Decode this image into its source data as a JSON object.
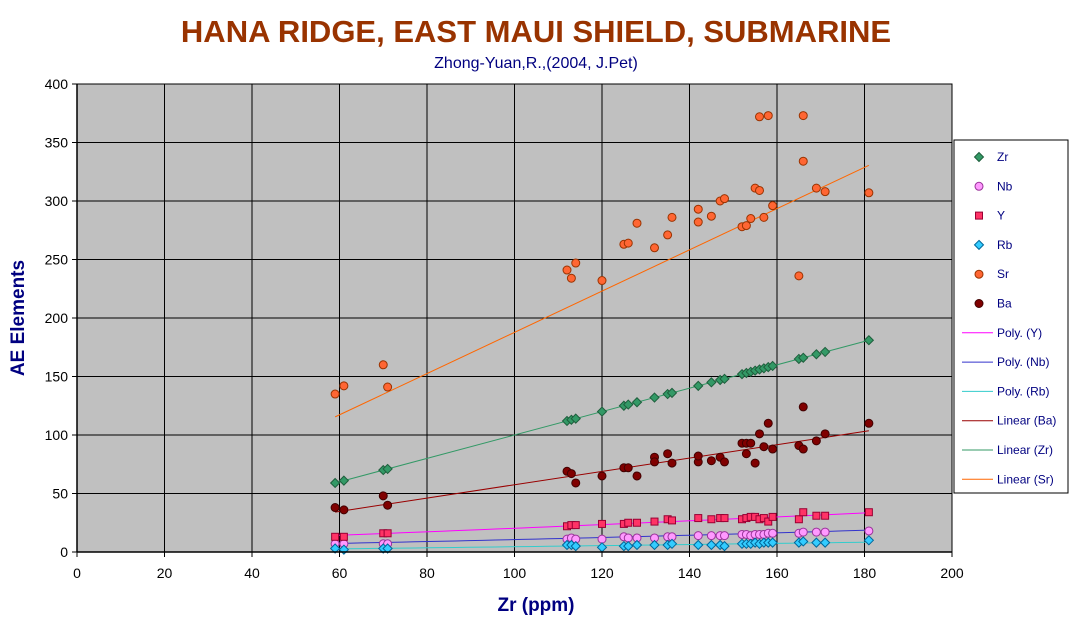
{
  "chart_data": {
    "type": "scatter",
    "title": "HANA RIDGE, EAST MAUI SHIELD, SUBMARINE",
    "subtitle": "Zhong-Yuan,R.,(2004, J.Pet)",
    "xlabel": "Zr (ppm)",
    "ylabel": "AE Elements",
    "xlim": [
      0,
      200
    ],
    "ylim": [
      0,
      400
    ],
    "xticks": [
      "0",
      "20",
      "40",
      "60",
      "80",
      "100",
      "120",
      "140",
      "160",
      "180",
      "200"
    ],
    "yticks": [
      "0",
      "50",
      "100",
      "150",
      "200",
      "250",
      "300",
      "350",
      "400"
    ],
    "grid": true,
    "legend_position": "right",
    "series": [
      {
        "name": "Zr",
        "marker": "diamond",
        "color": "#339966",
        "edge": "#1e5e3c",
        "x": [
          59,
          61,
          70,
          71,
          112,
          113,
          114,
          120,
          125,
          126,
          128,
          132,
          135,
          136,
          142,
          145,
          147,
          148,
          152,
          153,
          154,
          155,
          156,
          157,
          158,
          159,
          165,
          166,
          169,
          171,
          181
        ],
        "y": [
          59,
          61,
          70,
          71,
          112,
          113,
          114,
          120,
          125,
          126,
          128,
          132,
          135,
          136,
          142,
          145,
          147,
          148,
          152,
          153,
          154,
          155,
          156,
          157,
          158,
          159,
          165,
          166,
          169,
          171,
          181
        ]
      },
      {
        "name": "Nb",
        "marker": "circle",
        "color": "#ff99ff",
        "edge": "#993399",
        "x": [
          59,
          61,
          70,
          71,
          112,
          113,
          114,
          120,
          125,
          126,
          128,
          132,
          135,
          136,
          142,
          145,
          147,
          148,
          152,
          153,
          154,
          155,
          156,
          157,
          158,
          159,
          165,
          166,
          169,
          171,
          181
        ],
        "y": [
          7,
          7,
          7,
          7,
          11,
          12,
          11,
          11,
          13,
          12,
          12,
          12,
          13,
          13,
          14,
          14,
          14,
          14,
          15,
          15,
          14,
          15,
          15,
          15,
          16,
          16,
          16,
          17,
          17,
          17,
          18
        ]
      },
      {
        "name": "Y",
        "marker": "square",
        "color": "#ff3366",
        "edge": "#990033",
        "x": [
          59,
          61,
          70,
          71,
          112,
          113,
          114,
          120,
          125,
          126,
          128,
          132,
          135,
          136,
          142,
          145,
          147,
          148,
          152,
          153,
          154,
          155,
          156,
          157,
          158,
          159,
          165,
          166,
          169,
          171,
          181
        ],
        "y": [
          13,
          13,
          16,
          16,
          22,
          23,
          23,
          24,
          24,
          25,
          25,
          26,
          28,
          27,
          29,
          28,
          29,
          29,
          28,
          29,
          30,
          30,
          28,
          29,
          26,
          30,
          28,
          34,
          31,
          31,
          34
        ]
      },
      {
        "name": "Rb",
        "marker": "diamond",
        "color": "#33ccff",
        "edge": "#006699",
        "x": [
          59,
          61,
          70,
          71,
          112,
          113,
          114,
          120,
          125,
          126,
          128,
          132,
          135,
          136,
          142,
          145,
          147,
          148,
          152,
          153,
          154,
          155,
          156,
          157,
          158,
          159,
          165,
          166,
          169,
          171,
          181
        ],
        "y": [
          3,
          2,
          3,
          3,
          6,
          6,
          5,
          4,
          5,
          5,
          6,
          6,
          6,
          7,
          6,
          6,
          6,
          5,
          7,
          7,
          7,
          8,
          7,
          8,
          8,
          8,
          8,
          9,
          8,
          8,
          10
        ]
      },
      {
        "name": "Sr",
        "marker": "circle",
        "color": "#ff6633",
        "edge": "#993300",
        "x": [
          59,
          61,
          70,
          71,
          112,
          113,
          114,
          120,
          125,
          126,
          128,
          132,
          135,
          136,
          142,
          142,
          145,
          147,
          148,
          152,
          153,
          154,
          155,
          156,
          156,
          157,
          158,
          159,
          165,
          166,
          166,
          169,
          171,
          181
        ],
        "y": [
          135,
          142,
          160,
          141,
          241,
          234,
          247,
          232,
          263,
          264,
          281,
          260,
          271,
          286,
          282,
          293,
          287,
          300,
          302,
          278,
          279,
          285,
          311,
          309,
          372,
          286,
          373,
          296,
          236,
          334,
          373,
          311,
          308,
          307
        ]
      },
      {
        "name": "Ba",
        "marker": "circle",
        "color": "#800000",
        "edge": "#400000",
        "x": [
          59,
          61,
          70,
          71,
          112,
          113,
          114,
          120,
          125,
          126,
          128,
          132,
          132,
          135,
          136,
          142,
          142,
          145,
          147,
          148,
          152,
          153,
          153,
          154,
          155,
          156,
          157,
          158,
          159,
          165,
          166,
          166,
          169,
          171,
          181
        ],
        "y": [
          38,
          36,
          48,
          40,
          69,
          67,
          59,
          65,
          72,
          72,
          65,
          81,
          77,
          84,
          76,
          77,
          82,
          78,
          81,
          77,
          93,
          93,
          84,
          93,
          76,
          101,
          90,
          110,
          88,
          91,
          88,
          124,
          95,
          101,
          110
        ]
      }
    ],
    "fits": [
      {
        "name": "Poly. (Y)",
        "type": "poly2",
        "color": "#ff00ff",
        "x_range": [
          59,
          181
        ],
        "coef": [
          6.1,
          0.13,
          0.00012
        ]
      },
      {
        "name": "Poly. (Nb)",
        "type": "poly2",
        "color": "#3333cc",
        "x_range": [
          59,
          181
        ],
        "coef": [
          3.5,
          0.055,
          0.00016
        ]
      },
      {
        "name": "Poly. (Rb)",
        "type": "poly2",
        "color": "#33cccc",
        "x_range": [
          59,
          181
        ],
        "coef": [
          0.2,
          0.04,
          3e-05
        ]
      },
      {
        "name": "Linear (Ba)",
        "type": "linear",
        "color": "#990000",
        "x_range": [
          59,
          181
        ],
        "coef": [
          0.5,
          0.57
        ]
      },
      {
        "name": "Linear (Zr)",
        "type": "linear",
        "color": "#339966",
        "x_range": [
          59,
          181
        ],
        "coef": [
          0,
          1
        ]
      },
      {
        "name": "Linear (Sr)",
        "type": "linear",
        "color": "#ff6600",
        "x_range": [
          59,
          181
        ],
        "coef": [
          11.5,
          1.7625
        ]
      }
    ],
    "legend": [
      {
        "label": "Zr",
        "kind": "marker",
        "ref": 0
      },
      {
        "label": "Nb",
        "kind": "marker",
        "ref": 1
      },
      {
        "label": "Y",
        "kind": "marker",
        "ref": 2
      },
      {
        "label": "Rb",
        "kind": "marker",
        "ref": 3
      },
      {
        "label": "Sr",
        "kind": "marker",
        "ref": 4
      },
      {
        "label": "Ba",
        "kind": "marker",
        "ref": 5
      },
      {
        "label": "Poly. (Y)",
        "kind": "line",
        "ref": 0
      },
      {
        "label": "Poly. (Nb)",
        "kind": "line",
        "ref": 1
      },
      {
        "label": "Poly. (Rb)",
        "kind": "line",
        "ref": 2
      },
      {
        "label": "Linear (Ba)",
        "kind": "line",
        "ref": 3
      },
      {
        "label": "Linear (Zr)",
        "kind": "line",
        "ref": 4
      },
      {
        "label": "Linear (Sr)",
        "kind": "line",
        "ref": 5
      }
    ],
    "colors": {
      "plot_background": "#c0c0c0",
      "grid": "#000000",
      "title": "#993300",
      "axis_text": "#000080"
    }
  }
}
